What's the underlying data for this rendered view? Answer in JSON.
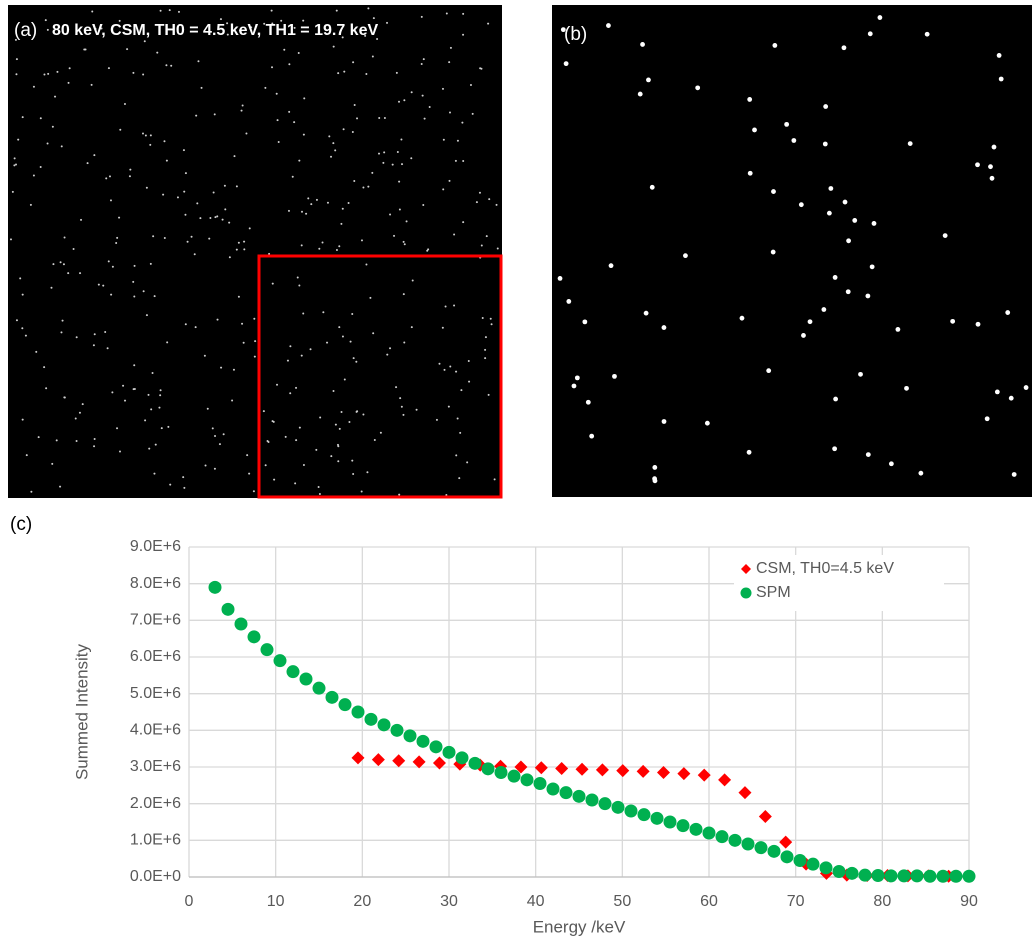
{
  "panels": {
    "a_label": "(a)",
    "a_annotation": "80 keV, CSM, TH0 = 4.5 keV, TH1 = 19.7 keV",
    "b_label": "(b)",
    "c_label": "(c)"
  },
  "chart_data": {
    "type": "scatter",
    "x_label": "Energy /keV",
    "y_label": "Summed Intensity",
    "xlim": [
      0,
      90
    ],
    "xticks": [
      0,
      10,
      20,
      30,
      40,
      50,
      60,
      70,
      80,
      90
    ],
    "ylim": [
      0,
      9000000
    ],
    "yticks": [
      {
        "value": 0,
        "label": "0.0E+0"
      },
      {
        "value": 1000000,
        "label": "1.0E+6"
      },
      {
        "value": 2000000,
        "label": "2.0E+6"
      },
      {
        "value": 3000000,
        "label": "3.0E+6"
      },
      {
        "value": 4000000,
        "label": "4.0E+6"
      },
      {
        "value": 5000000,
        "label": "5.0E+6"
      },
      {
        "value": 6000000,
        "label": "6.0E+6"
      },
      {
        "value": 7000000,
        "label": "7.0E+6"
      },
      {
        "value": 8000000,
        "label": "8.0E+6"
      },
      {
        "value": 9000000,
        "label": "9.0E+6"
      }
    ],
    "grid": true,
    "legend": "top-right",
    "series": [
      {
        "name": "CSM, TH0=4.5 keV",
        "color": "#ff0000",
        "marker": "diamond",
        "x": [
          19.5,
          21.85,
          24.2,
          26.55,
          28.9,
          31.25,
          33.6,
          35.95,
          38.3,
          40.65,
          43,
          45.35,
          47.7,
          50.05,
          52.4,
          54.75,
          57.1,
          59.45,
          61.8,
          64.15,
          66.5,
          68.85,
          71.2,
          73.55,
          75.9,
          78.25,
          80.6,
          82.95,
          85.3,
          87.65,
          90
        ],
        "values": [
          3250000,
          3200000,
          3170000,
          3140000,
          3110000,
          3080000,
          3050000,
          3020000,
          3000000,
          2980000,
          2960000,
          2940000,
          2920000,
          2900000,
          2880000,
          2850000,
          2820000,
          2780000,
          2650000,
          2300000,
          1650000,
          950000,
          350000,
          100000,
          50000,
          40000,
          40000,
          30000,
          30000,
          20000,
          20000
        ]
      },
      {
        "name": "SPM",
        "color": "#00b050",
        "marker": "circle",
        "x": [
          3,
          4.5,
          6,
          7.5,
          9,
          10.5,
          12,
          13.5,
          15,
          16.5,
          18,
          19.5,
          21,
          22.5,
          24,
          25.5,
          27,
          28.5,
          30,
          31.5,
          33,
          34.5,
          36,
          37.5,
          39,
          40.5,
          42,
          43.5,
          45,
          46.5,
          48,
          49.5,
          51,
          52.5,
          54,
          55.5,
          57,
          58.5,
          60,
          61.5,
          63,
          64.5,
          66,
          67.5,
          69,
          70.5,
          72,
          73.5,
          75,
          76.5,
          78,
          79.5,
          81,
          82.5,
          84,
          85.5,
          87,
          88.5,
          90
        ],
        "values": [
          7900000,
          7300000,
          6900000,
          6550000,
          6200000,
          5900000,
          5600000,
          5400000,
          5150000,
          4900000,
          4700000,
          4500000,
          4300000,
          4150000,
          4000000,
          3850000,
          3700000,
          3550000,
          3400000,
          3250000,
          3100000,
          2950000,
          2850000,
          2750000,
          2650000,
          2550000,
          2400000,
          2300000,
          2200000,
          2100000,
          2000000,
          1900000,
          1800000,
          1700000,
          1600000,
          1500000,
          1400000,
          1300000,
          1200000,
          1100000,
          1000000,
          900000,
          800000,
          700000,
          550000,
          450000,
          350000,
          250000,
          150000,
          100000,
          50000,
          40000,
          30000,
          30000,
          30000,
          20000,
          20000,
          20000,
          20000
        ]
      }
    ]
  }
}
